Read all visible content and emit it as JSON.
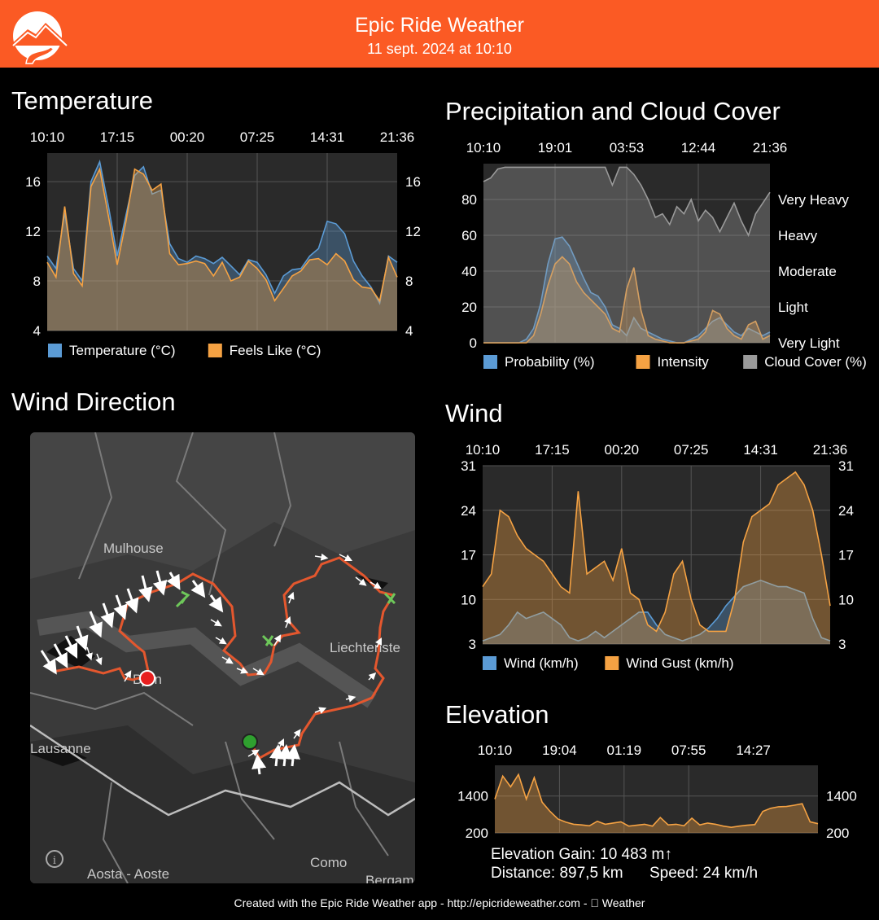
{
  "header": {
    "title": "Epic Ride Weather",
    "subtitle": "11 sept. 2024 at 10:10",
    "logo_icon": "mountain-road-logo-icon",
    "background": "#fb5a24"
  },
  "sections": {
    "temperature": "Temperature",
    "precip": "Precipitation and Cloud Cover",
    "wind": "Wind",
    "wind_direction": "Wind Direction",
    "elevation": "Elevation"
  },
  "chart_data": [
    {
      "id": "temperature",
      "type": "area",
      "x_ticks": [
        "10:10",
        "17:15",
        "00:20",
        "07:25",
        "14:31",
        "21:36"
      ],
      "y_ticks": [
        4,
        8,
        12,
        16
      ],
      "ylim": [
        4,
        18.3
      ],
      "grid": true,
      "legend_placement": "bottom",
      "series": [
        {
          "name": "Temperature (°C)",
          "color": "#5b9bd5",
          "values": [
            10,
            9,
            13.5,
            9,
            8,
            16,
            17.6,
            14,
            10,
            13.3,
            16.5,
            17.2,
            15,
            15.3,
            11,
            9.8,
            9.5,
            10,
            9.8,
            9.4,
            9.9,
            9.2,
            8.5,
            9.7,
            9.5,
            8.5,
            7,
            8.4,
            8.9,
            9,
            10,
            10.6,
            12.8,
            12.6,
            11.8,
            9.6,
            8.4,
            7.5,
            6.2,
            10,
            9.5
          ]
        },
        {
          "name": "Feels Like (°C)",
          "color": "#f5a243",
          "values": [
            9.5,
            8.3,
            14,
            8.6,
            7.6,
            15.6,
            17,
            13.2,
            9.3,
            12.8,
            17,
            16.6,
            15.3,
            15.8,
            10.2,
            9.3,
            9.4,
            9.6,
            9.4,
            8.4,
            9.5,
            8,
            8.3,
            9.6,
            9,
            8.1,
            6.4,
            7.4,
            8.4,
            8.8,
            9.7,
            9.8,
            9.3,
            10.2,
            9.6,
            8.1,
            7.5,
            7.4,
            6.4,
            9.9,
            8.3
          ]
        }
      ]
    },
    {
      "id": "precipitation",
      "type": "area",
      "x_ticks": [
        "10:10",
        "19:01",
        "03:53",
        "12:44",
        "21:36"
      ],
      "y_ticks": [
        0,
        20,
        40,
        60,
        80
      ],
      "right_labels": [
        "Very Light",
        "Light",
        "Moderate",
        "Heavy",
        "Very Heavy"
      ],
      "ylim": [
        0,
        100
      ],
      "grid": true,
      "legend_placement": "bottom",
      "series": [
        {
          "name": "Probability (%)",
          "color": "#5b9bd5",
          "values": [
            0,
            0,
            0,
            0,
            0,
            0,
            2,
            8,
            22,
            44,
            58,
            59,
            54,
            45,
            36,
            28,
            26,
            20,
            10,
            8,
            4,
            14,
            8,
            6,
            4,
            2,
            1,
            0,
            0,
            2,
            4,
            8,
            12,
            14,
            10,
            6,
            4,
            8,
            6,
            4,
            6
          ]
        },
        {
          "name": "Intensity",
          "color": "#f5a243",
          "values": [
            0,
            0,
            0,
            0,
            0,
            0,
            0,
            4,
            16,
            32,
            44,
            48,
            44,
            34,
            28,
            24,
            20,
            16,
            8,
            6,
            30,
            42,
            18,
            4,
            2,
            1,
            0,
            0,
            0,
            1,
            2,
            6,
            18,
            16,
            8,
            4,
            2,
            10,
            12,
            2,
            4
          ]
        },
        {
          "name": "Cloud Cover (%)",
          "color": "#9a9a9a",
          "values": [
            90,
            92,
            97,
            98,
            98,
            98,
            98,
            98,
            98,
            98,
            98,
            98,
            98,
            98,
            98,
            98,
            98,
            98,
            88,
            98,
            98,
            94,
            88,
            80,
            70,
            72,
            66,
            76,
            72,
            80,
            68,
            74,
            70,
            62,
            70,
            78,
            68,
            60,
            72,
            78,
            84
          ]
        }
      ]
    },
    {
      "id": "wind",
      "type": "area",
      "x_ticks": [
        "10:10",
        "17:15",
        "00:20",
        "07:25",
        "14:31",
        "21:36"
      ],
      "y_ticks": [
        3,
        10,
        17,
        24,
        31
      ],
      "ylim": [
        3,
        31
      ],
      "grid": true,
      "legend_placement": "bottom",
      "series": [
        {
          "name": "Wind (km/h)",
          "color": "#5b9bd5",
          "values": [
            3.5,
            4,
            4.5,
            6,
            8,
            7,
            7.5,
            8,
            7,
            6,
            4,
            3.5,
            4,
            5,
            4,
            5,
            6,
            7,
            8,
            8,
            6,
            4.5,
            4,
            3.5,
            4,
            4.5,
            5.5,
            7,
            9,
            10.5,
            12,
            12.5,
            13,
            12.5,
            12,
            12,
            11.5,
            11,
            7,
            4,
            3.5
          ]
        },
        {
          "name": "Wind Gust (km/h)",
          "color": "#f5a243",
          "values": [
            12,
            14,
            24,
            23,
            20,
            18,
            17,
            16,
            14,
            12,
            11,
            27,
            14,
            15,
            16,
            13,
            18,
            11,
            10,
            6,
            5,
            8,
            14,
            16,
            10,
            6,
            5,
            5,
            5,
            10,
            19,
            23,
            24,
            25,
            28,
            29,
            30,
            28,
            24,
            17,
            9
          ]
        }
      ]
    },
    {
      "id": "elevation",
      "type": "area",
      "x_ticks": [
        "10:10",
        "19:04",
        "01:19",
        "07:55",
        "14:27"
      ],
      "y_ticks": [
        200,
        1400
      ],
      "ylim": [
        200,
        2400
      ],
      "grid": true,
      "series": [
        {
          "name": "Elevation",
          "color": "#f5a243",
          "values": [
            1300,
            2050,
            1700,
            2100,
            1300,
            2000,
            1200,
            900,
            650,
            550,
            480,
            460,
            430,
            580,
            480,
            520,
            560,
            420,
            450,
            480,
            420,
            700,
            460,
            480,
            430,
            680,
            460,
            520,
            480,
            420,
            380,
            420,
            450,
            470,
            900,
            1000,
            1050,
            1060,
            1100,
            1150,
            560,
            500
          ]
        }
      ]
    }
  ],
  "wind_direction_map": {
    "labels": [
      "Mulhouse",
      "Liechtenste",
      "Lausanne",
      "Bern",
      "Aosta - Aoste",
      "Como",
      "Bergam"
    ],
    "info_icon": "info-icon",
    "route_color": "#e4572e"
  },
  "stats": {
    "elevation_gain": "Elevation Gain: 10 483 m↑",
    "distance": "Distance: 897,5 km",
    "speed": "Speed: 24 km/h"
  },
  "footer": {
    "text": "Created with the Epic Ride Weather app - http://epicrideweather.com - ",
    "apple_icon": "apple-logo-icon",
    "weather": "Weather"
  }
}
